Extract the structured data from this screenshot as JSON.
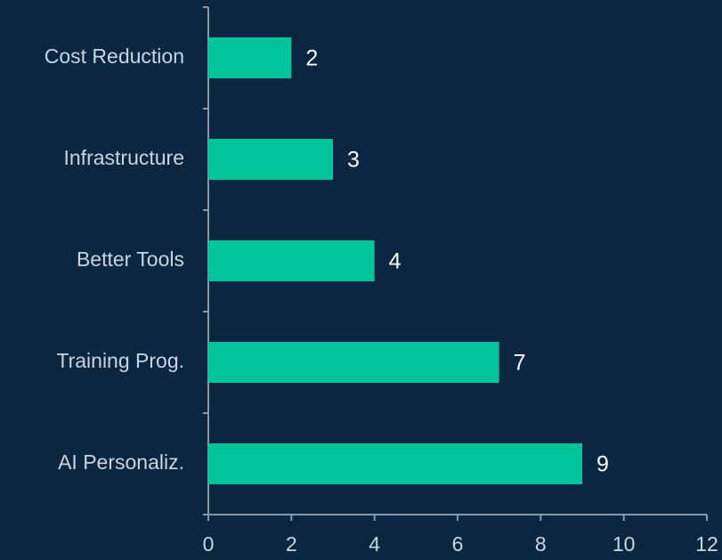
{
  "chart_data": {
    "type": "bar",
    "orientation": "horizontal",
    "categories": [
      "Cost Reduction",
      "Infrastructure",
      "Better Tools",
      "Training Prog.",
      "AI Personaliz."
    ],
    "values": [
      2,
      3,
      4,
      7,
      9
    ],
    "color": "#00c49a",
    "xlim": [
      0,
      12
    ],
    "xticks": [
      0,
      2,
      4,
      6,
      8,
      10,
      12
    ]
  }
}
